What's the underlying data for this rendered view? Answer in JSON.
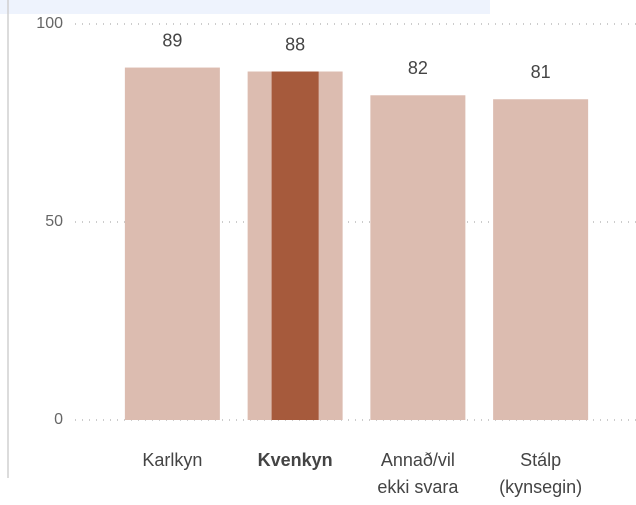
{
  "chart_data": {
    "type": "bar",
    "categories": [
      "Karlkyn",
      "Kvenkyn",
      "Annað/vil\nekki svara",
      "Stálp\n(kynsegin)"
    ],
    "values": [
      89,
      88,
      82,
      81
    ],
    "color": "#dcbcb0",
    "highlight_color": "#a65a3c",
    "selected": "Kvenkyn",
    "ylim": [
      0,
      100
    ],
    "yticks": [
      0,
      50,
      100
    ],
    "grid": true
  }
}
